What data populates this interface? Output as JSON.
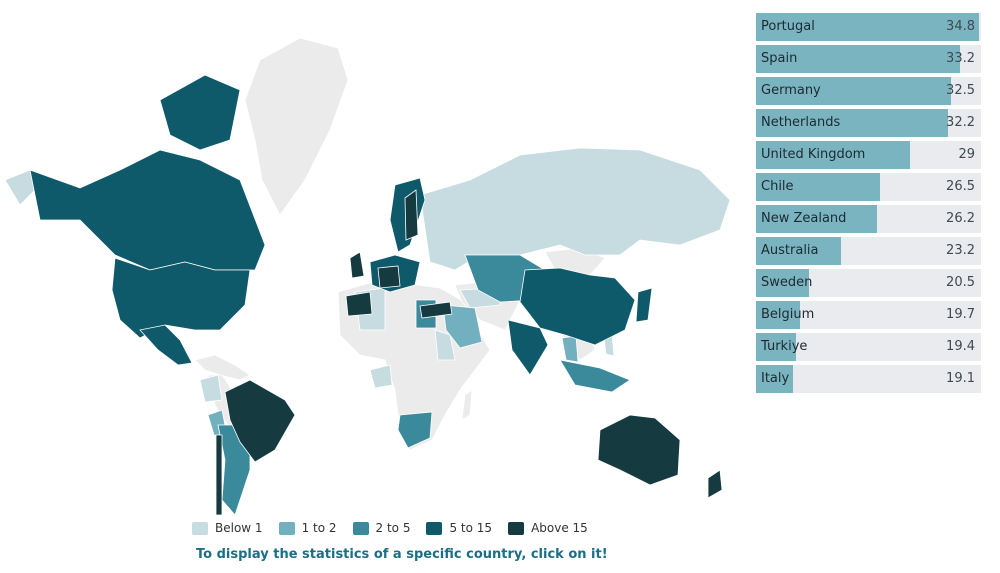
{
  "colors": {
    "none": "#ebebeb",
    "below_1": "#c6dce1",
    "1_to_2": "#73b0bf",
    "2_to_5": "#3a8a9c",
    "5_to_15": "#0f5a6a",
    "above_15": "#153a40",
    "bar_fill": "#7ab4c1",
    "bar_track": "#e9ebee",
    "cta": "#1a6f86"
  },
  "legend": [
    {
      "label": "Below 1",
      "color_key": "below_1"
    },
    {
      "label": "1 to 2",
      "color_key": "1_to_2"
    },
    {
      "label": "2 to 5",
      "color_key": "2_to_5"
    },
    {
      "label": "5 to 15",
      "color_key": "5_to_15"
    },
    {
      "label": "Above 15",
      "color_key": "above_15"
    }
  ],
  "cta_text": "To display the statistics of a specific country, click on it!",
  "chart_data": [
    {
      "type": "bar",
      "orientation": "horizontal",
      "categories": [
        "Portugal",
        "Spain",
        "Germany",
        "Netherlands",
        "United Kingdom",
        "Chile",
        "New Zealand",
        "Australia",
        "Sweden",
        "Belgium",
        "Turkiye",
        "Italy"
      ],
      "values": [
        34.8,
        33.2,
        32.5,
        32.2,
        29,
        26.5,
        26.2,
        23.2,
        20.5,
        19.7,
        19.4,
        19.1
      ],
      "value_labels": [
        "34.8",
        "33.2",
        "32.5",
        "32.2",
        "29",
        "26.5",
        "26.2",
        "23.2",
        "20.5",
        "19.7",
        "19.4",
        "19.1"
      ],
      "xlim": [
        16,
        35
      ],
      "grid": false
    },
    {
      "type": "heatmap",
      "subtype": "choropleth map",
      "legend_placement": "bottom",
      "classes": [
        "Below 1",
        "1 to 2",
        "2 to 5",
        "5 to 15",
        "Above 15"
      ]
    }
  ]
}
